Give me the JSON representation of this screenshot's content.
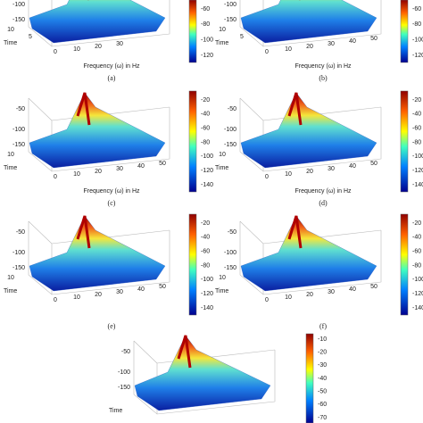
{
  "panels": [
    {
      "caption": "(a)",
      "z_ticks": [
        "-100",
        "-150"
      ],
      "time_ticks": [
        "10",
        "5"
      ],
      "time_label": "Time",
      "freq_ticks": [
        "0",
        "10",
        "20",
        "30"
      ],
      "freq_label": "Frequency (ω) in Hz",
      "colorbar_ticks": [
        "-60",
        "-80",
        "-100",
        "-120"
      ]
    },
    {
      "caption": "(b)",
      "z_ticks": [
        "-100",
        "-150"
      ],
      "time_ticks": [
        "10",
        "5"
      ],
      "time_label": "Time",
      "freq_ticks": [
        "0",
        "10",
        "20",
        "30",
        "40",
        "50"
      ],
      "freq_label": "Frequency (ω) in Hz",
      "colorbar_ticks": [
        "-60",
        "-80",
        "-100",
        "-120"
      ]
    },
    {
      "caption": "(c)",
      "z_ticks": [
        "-50",
        "-100",
        "-150"
      ],
      "time_ticks": [
        "10"
      ],
      "time_label": "Time",
      "freq_ticks": [
        "0",
        "10",
        "20",
        "30",
        "40",
        "50"
      ],
      "freq_label": "Frequency (ω) in Hz",
      "colorbar_ticks": [
        "-20",
        "-40",
        "-60",
        "-80",
        "-100",
        "-120",
        "-140"
      ]
    },
    {
      "caption": "(d)",
      "z_ticks": [
        "-50",
        "-100",
        "-150"
      ],
      "time_ticks": [
        "10"
      ],
      "time_label": "Time",
      "freq_ticks": [
        "0",
        "10",
        "20",
        "30",
        "40",
        "50"
      ],
      "freq_label": "Frequency (ω) in Hz",
      "colorbar_ticks": [
        "-20",
        "-40",
        "-60",
        "-80",
        "-100",
        "-120",
        "-140"
      ]
    },
    {
      "caption": "(e)",
      "z_ticks": [
        "-50",
        "-100",
        "-150"
      ],
      "time_ticks": [
        "10"
      ],
      "time_label": "Time",
      "freq_ticks": [
        "0",
        "10",
        "20",
        "30",
        "40",
        "50"
      ],
      "freq_label": "",
      "colorbar_ticks": [
        "-20",
        "-40",
        "-60",
        "-80",
        "-100",
        "-120",
        "-140"
      ]
    },
    {
      "caption": "(f)",
      "z_ticks": [
        "-50",
        "-100",
        "-150"
      ],
      "time_ticks": [
        "10"
      ],
      "time_label": "Time",
      "freq_ticks": [
        "0",
        "10",
        "20",
        "30",
        "40",
        "50"
      ],
      "freq_label": "",
      "colorbar_ticks": [
        "-20",
        "-40",
        "-60",
        "-80",
        "-100",
        "-120",
        "-140"
      ]
    },
    {
      "caption": "",
      "z_ticks": [
        "-50",
        "-100",
        "-150"
      ],
      "time_ticks": [],
      "time_label": "Time",
      "freq_ticks": [],
      "freq_label": "",
      "colorbar_ticks": [
        "-10",
        "-20",
        "-30",
        "-40",
        "-50",
        "-60",
        "-70"
      ]
    }
  ]
}
